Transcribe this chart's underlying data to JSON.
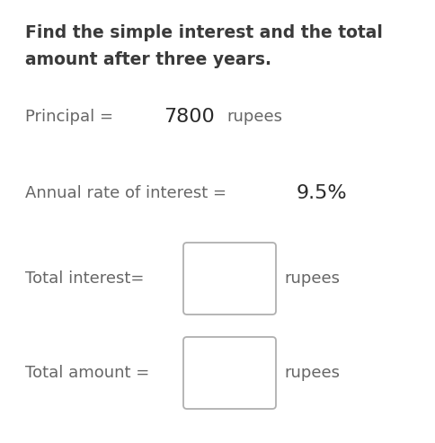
{
  "title_line1": "Find the simple interest and the total",
  "title_line2": "amount after three years.",
  "line1_label": "Principal = ",
  "line1_value": "7800",
  "line1_unit": " rupees",
  "line2_label": "Annual rate of interest = ",
  "line2_value": "9.5%",
  "line3_label": "Total interest=",
  "line3_unit": "rupees",
  "line4_label": "Total amount =",
  "line4_unit": "rupees",
  "bg_color": "#ffffff",
  "title_color": "#3a3a3a",
  "text_color": "#666666",
  "value_color": "#2a2a2a",
  "box_edge_color": "#b0b0b0",
  "title_fontsize": 13.5,
  "body_fontsize": 13,
  "value_fontsize": 16
}
